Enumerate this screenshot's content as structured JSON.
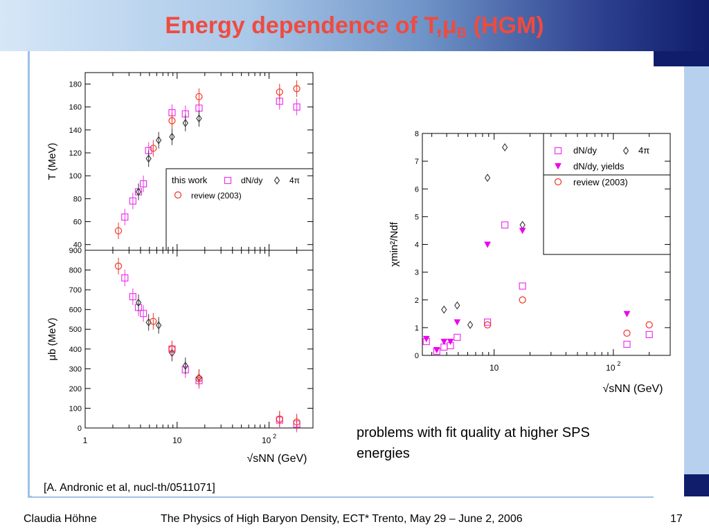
{
  "slide": {
    "title_main": "Energy dependence of T,μ",
    "title_sub": "B",
    "title_tail": " (HGM)",
    "comment": "problems with fit quality at higher SPS energies",
    "reference": "[A. Andronic et al, nucl-th/0511071]",
    "footer_author": "Claudia Höhne",
    "footer_event": "The Physics of High Baryon Density, ECT* Trento, May 29 – June 2, 2006",
    "footer_page": "17"
  },
  "colors": {
    "title": "#ef4b3f",
    "dndy": "#ee33ee",
    "fourpi": "#333333",
    "review": "#ee3322",
    "yields": "#ee00ee"
  },
  "chart_data": [
    {
      "type": "scatter",
      "panel": "top-left",
      "xscale": "log",
      "xlim": [
        1,
        300
      ],
      "ylim": [
        35,
        190
      ],
      "ylabel": "T (MeV)",
      "yticks": [
        "40",
        "60",
        "80",
        "100",
        "120",
        "140",
        "160",
        "180"
      ],
      "legend": {
        "title": "this work",
        "entries": [
          "dN/dy",
          "4π",
          "review (2003)"
        ],
        "placement": "bottom-right"
      },
      "series": [
        {
          "name": "dN/dy",
          "marker": "square",
          "points": [
            [
              2.7,
              64
            ],
            [
              3.3,
              78
            ],
            [
              3.8,
              86
            ],
            [
              4.3,
              93
            ],
            [
              4.9,
              122
            ],
            [
              8.8,
              155
            ],
            [
              12.3,
              154
            ],
            [
              17.3,
              159
            ],
            [
              130,
              165
            ],
            [
              200,
              160
            ]
          ]
        },
        {
          "name": "4π",
          "marker": "diamond",
          "points": [
            [
              3.8,
              86
            ],
            [
              4.9,
              115
            ],
            [
              6.3,
              131
            ],
            [
              8.8,
              134
            ],
            [
              12.3,
              146
            ],
            [
              17.3,
              150
            ]
          ]
        },
        {
          "name": "review (2003)",
          "marker": "circle",
          "points": [
            [
              2.3,
              52
            ],
            [
              5.5,
              124
            ],
            [
              8.8,
              148
            ],
            [
              17.3,
              169
            ],
            [
              130,
              173
            ],
            [
              200,
              176
            ]
          ]
        }
      ]
    },
    {
      "type": "scatter",
      "panel": "bottom-left",
      "xscale": "log",
      "xlim": [
        1,
        300
      ],
      "ylim": [
        0,
        900
      ],
      "ylabel": "μb (MeV)",
      "xlabel": "√sNN (GeV)",
      "xticklabels": [
        "1",
        "10",
        "10²"
      ],
      "yticks": [
        "0",
        "100",
        "200",
        "300",
        "400",
        "500",
        "600",
        "700",
        "800",
        "900"
      ],
      "series": [
        {
          "name": "dN/dy",
          "marker": "square",
          "points": [
            [
              2.7,
              760
            ],
            [
              3.3,
              665
            ],
            [
              3.8,
              610
            ],
            [
              4.3,
              580
            ],
            [
              8.8,
              400
            ],
            [
              12.3,
              295
            ],
            [
              17.3,
              240
            ],
            [
              130,
              40
            ],
            [
              200,
              20
            ]
          ]
        },
        {
          "name": "4π",
          "marker": "diamond",
          "points": [
            [
              3.8,
              635
            ],
            [
              4.9,
              535
            ],
            [
              6.3,
              520
            ],
            [
              8.8,
              380
            ],
            [
              12.3,
              315
            ],
            [
              17.3,
              255
            ]
          ]
        },
        {
          "name": "review (2003)",
          "marker": "circle",
          "points": [
            [
              2.3,
              820
            ],
            [
              5.5,
              540
            ],
            [
              8.8,
              400
            ],
            [
              17.3,
              250
            ],
            [
              130,
              45
            ],
            [
              200,
              30
            ]
          ]
        }
      ]
    },
    {
      "type": "scatter",
      "panel": "right",
      "xscale": "log",
      "xlim": [
        2.5,
        300
      ],
      "ylim": [
        0,
        8
      ],
      "ylabel": "χmin²/Ndf",
      "xlabel": "√sNN (GeV)",
      "xticklabels": [
        "10",
        "10²"
      ],
      "yticks": [
        "0",
        "1",
        "2",
        "3",
        "4",
        "5",
        "6",
        "7",
        "8"
      ],
      "legend": {
        "entries": [
          "dN/dy",
          "4π",
          "dN/dy, yields",
          "review (2003)"
        ],
        "placement": "top-right"
      },
      "series": [
        {
          "name": "dN/dy",
          "marker": "square",
          "points": [
            [
              2.7,
              0.5
            ],
            [
              3.3,
              0.15
            ],
            [
              3.8,
              0.3
            ],
            [
              4.3,
              0.35
            ],
            [
              4.9,
              0.65
            ],
            [
              8.8,
              1.2
            ],
            [
              12.3,
              4.7
            ],
            [
              17.3,
              2.5
            ],
            [
              130,
              0.4
            ],
            [
              200,
              0.75
            ]
          ]
        },
        {
          "name": "4π",
          "marker": "diamond",
          "points": [
            [
              3.8,
              1.65
            ],
            [
              4.9,
              1.8
            ],
            [
              6.3,
              1.1
            ],
            [
              8.8,
              6.4
            ],
            [
              12.3,
              7.5
            ],
            [
              17.3,
              4.7
            ]
          ]
        },
        {
          "name": "dN/dy, yields",
          "marker": "triangle-down",
          "points": [
            [
              2.7,
              0.6
            ],
            [
              3.3,
              0.2
            ],
            [
              3.8,
              0.5
            ],
            [
              4.3,
              0.5
            ],
            [
              4.9,
              1.2
            ],
            [
              8.8,
              4.0
            ],
            [
              17.3,
              4.5
            ],
            [
              130,
              1.5
            ]
          ]
        },
        {
          "name": "review (2003)",
          "marker": "circle",
          "points": [
            [
              8.8,
              1.1
            ],
            [
              17.3,
              2.0
            ],
            [
              130,
              0.8
            ],
            [
              200,
              1.1
            ]
          ]
        }
      ]
    }
  ]
}
